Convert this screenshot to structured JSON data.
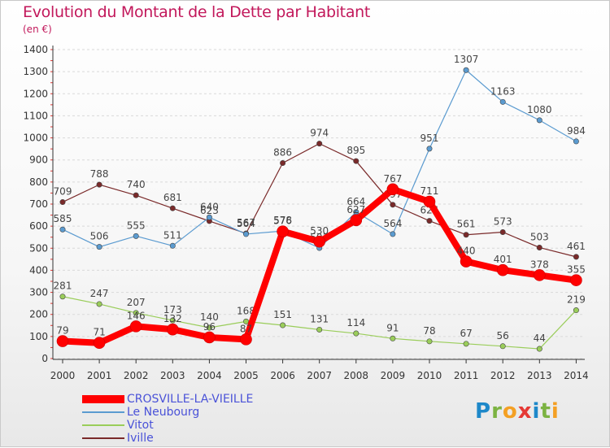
{
  "title": "Evolution du Montant de la Dette par Habitant",
  "subtitle": "(en €)",
  "logo": {
    "letters": [
      {
        "ch": "P",
        "color": "#1e88c9"
      },
      {
        "ch": "r",
        "color": "#7cb342"
      },
      {
        "ch": "o",
        "color": "#f4a024"
      },
      {
        "ch": "x",
        "color": "#e53935"
      },
      {
        "ch": "i",
        "color": "#1e88c9"
      },
      {
        "ch": "t",
        "color": "#7cb342"
      },
      {
        "ch": "i",
        "color": "#f4a024"
      }
    ]
  },
  "chart_data": {
    "type": "line",
    "title": "Evolution du Montant de la Dette par Habitant",
    "subtitle": "(en €)",
    "categories": [
      "2000",
      "2001",
      "2002",
      "2003",
      "2004",
      "2005",
      "2006",
      "2007",
      "2008",
      "2009",
      "2010",
      "2011",
      "2012",
      "2013",
      "2014"
    ],
    "ylim": [
      0,
      1400
    ],
    "yticks": [
      "0",
      "100",
      "200",
      "300",
      "400",
      "500",
      "600",
      "700",
      "800",
      "900",
      "1000",
      "1100",
      "1200",
      "1300",
      "1400"
    ],
    "grid": "horizontal dashed",
    "legend_position": "bottom-left",
    "series": [
      {
        "name": "Iville",
        "color": "#7a2a2a",
        "width": 1.2,
        "values": [
          709,
          788,
          740,
          681,
          623,
          567,
          886,
          974,
          895,
          697,
          624,
          561,
          573,
          503,
          461
        ],
        "labels": [
          "709",
          "788",
          "740",
          "681",
          "623",
          "567",
          "886",
          "974",
          "895",
          "697",
          "624",
          "561",
          "573",
          "503",
          "461"
        ]
      },
      {
        "name": "Le Neubourg",
        "color": "#5b9bd0",
        "width": 1.2,
        "values": [
          585,
          506,
          555,
          511,
          640,
          564,
          578,
          501,
          664,
          564,
          951,
          1307,
          1163,
          1080,
          984
        ],
        "labels": [
          "585",
          "506",
          "555",
          "511",
          "640",
          "564",
          "578",
          "501",
          "664",
          "564",
          "951",
          "1307",
          "1163",
          "1080",
          "984"
        ]
      },
      {
        "name": "Vitot",
        "color": "#9acd5a",
        "width": 1.2,
        "values": [
          281,
          247,
          207,
          173,
          140,
          168,
          151,
          131,
          114,
          91,
          78,
          67,
          56,
          44,
          219
        ],
        "labels": [
          "281",
          "247",
          "207",
          "173",
          "140",
          "168",
          "151",
          "131",
          "114",
          "91",
          "78",
          "67",
          "56",
          "44",
          "219"
        ]
      },
      {
        "name": "CROSVILLE-LA-VIEILLE",
        "color": "#ff0000",
        "width": 8,
        "values": [
          79,
          71,
          146,
          132,
          96,
          87,
          576,
          530,
          627,
          767,
          711,
          440,
          401,
          378,
          355
        ],
        "labels": [
          "79",
          "71",
          "146",
          "132",
          "96",
          "87",
          "576",
          "530",
          "627",
          "767",
          "711",
          "440",
          "401",
          "378",
          "355"
        ]
      }
    ],
    "legend_order": [
      "CROSVILLE-LA-VIEILLE",
      "Le Neubourg",
      "Vitot",
      "Iville"
    ]
  }
}
